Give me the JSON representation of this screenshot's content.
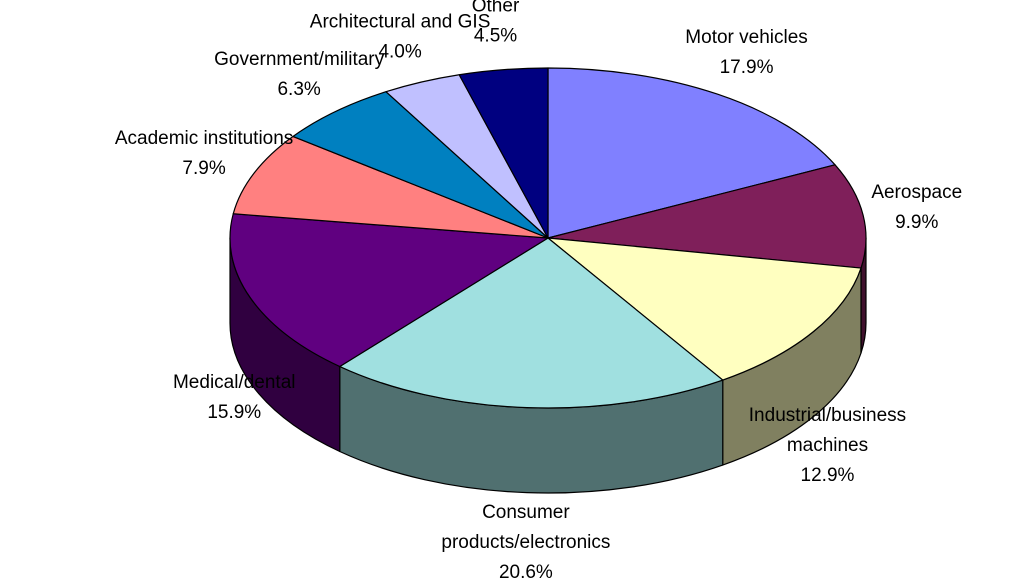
{
  "chart_data": {
    "type": "pie3d",
    "categories": [
      "Motor vehicles",
      "Aerospace",
      "Industrial/business machines",
      "Consumer products/electronics",
      "Medical/dental",
      "Academic institutions",
      "Government/military",
      "Architectural and GIS",
      "Other"
    ],
    "values": [
      17.9,
      9.9,
      12.9,
      20.6,
      15.9,
      7.9,
      6.3,
      4.0,
      4.5
    ],
    "value_labels": [
      "17.9%",
      "9.9%",
      "12.9%",
      "20.6%",
      "15.9%",
      "7.9%",
      "6.3%",
      "4.0%",
      "4.5%"
    ],
    "colors": [
      "#8080ff",
      "#7f1f5a",
      "#ffffc0",
      "#a0e0e0",
      "#600080",
      "#ff8080",
      "#0080c0",
      "#c0c0ff",
      "#000080"
    ]
  }
}
